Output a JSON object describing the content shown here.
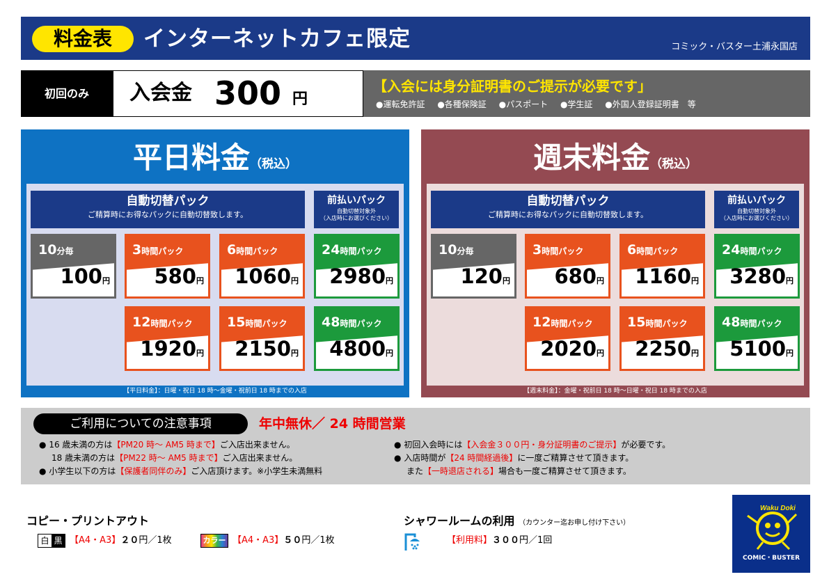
{
  "header": {
    "tag": "料金表",
    "title": "インターネットカフェ限定",
    "store": "コミック・バスター土浦永国店"
  },
  "entry": {
    "label": "初回のみ",
    "fee_label": "入会金",
    "fee_amount": "300",
    "fee_yen": "円",
    "id_title": "【入会には身分証明書のご提示が必要です」",
    "id_items": [
      "●運転免許証",
      "●各種保険証",
      "●パスポート",
      "●学生証",
      "●外国人登録証明書　等"
    ]
  },
  "weekday": {
    "title": "平日料金",
    "tax": "（税込）",
    "auto_title": "自動切替パック",
    "auto_desc": "ご精算時にお得なパックに自動切替致します。",
    "pre_title": "前払いパック",
    "pre_desc1": "自動切替対象外",
    "pre_desc2": "（入店時にお選びください）",
    "cards": [
      {
        "num": "10",
        "unit": "分毎",
        "price": "100",
        "yen": "円",
        "color": "gray"
      },
      {
        "num": "3",
        "unit": "時間パック",
        "price": "580",
        "yen": "円",
        "color": "orange"
      },
      {
        "num": "6",
        "unit": "時間パック",
        "price": "1060",
        "yen": "円",
        "color": "orange"
      },
      {
        "num": "24",
        "unit": "時間パック",
        "price": "2980",
        "yen": "円",
        "color": "green"
      },
      {
        "num": "12",
        "unit": "時間パック",
        "price": "1920",
        "yen": "円",
        "color": "orange"
      },
      {
        "num": "15",
        "unit": "時間パック",
        "price": "2150",
        "yen": "円",
        "color": "orange"
      },
      {
        "num": "48",
        "unit": "時間パック",
        "price": "4800",
        "yen": "円",
        "color": "green"
      }
    ],
    "footer": "【平日料金】：日曜・祝日 18 時～金曜・祝前日 18 時までの入店"
  },
  "weekend": {
    "title": "週末料金",
    "tax": "（税込）",
    "auto_title": "自動切替パック",
    "auto_desc": "ご精算時にお得なパックに自動切替致します。",
    "pre_title": "前払いパック",
    "pre_desc1": "自動切替対象外",
    "pre_desc2": "（入店時にお選びください）",
    "cards": [
      {
        "num": "10",
        "unit": "分毎",
        "price": "120",
        "yen": "円",
        "color": "gray"
      },
      {
        "num": "3",
        "unit": "時間パック",
        "price": "680",
        "yen": "円",
        "color": "orange"
      },
      {
        "num": "6",
        "unit": "時間パック",
        "price": "1160",
        "yen": "円",
        "color": "orange"
      },
      {
        "num": "24",
        "unit": "時間パック",
        "price": "3280",
        "yen": "円",
        "color": "green"
      },
      {
        "num": "12",
        "unit": "時間パック",
        "price": "2020",
        "yen": "円",
        "color": "orange"
      },
      {
        "num": "15",
        "unit": "時間パック",
        "price": "2250",
        "yen": "円",
        "color": "orange"
      },
      {
        "num": "48",
        "unit": "時間パック",
        "price": "5100",
        "yen": "円",
        "color": "green"
      }
    ],
    "footer": "【週末料金】：金曜・祝前日 18 時～日曜・祝日 18 時までの入店"
  },
  "notes": {
    "title": "ご利用についての注意事項",
    "open": "年中無休／ 24 時間営業",
    "left": [
      {
        "bullet": "●",
        "a": "16 歳未満の方は",
        "r": "【PM20 時～ AM5 時まで】",
        "b": "ご入店出来ません。"
      },
      {
        "bullet": "",
        "a": "18 歳未満の方は",
        "r": "【PM22 時～ AM5 時まで】",
        "b": "ご入店出来ません。"
      },
      {
        "bullet": "●",
        "a": "小学生以下の方は",
        "r": "【保護者同伴のみ】",
        "b": "ご入店頂けます。※小学生未満無料"
      }
    ],
    "right": [
      {
        "bullet": "●",
        "a": "初回入会時には",
        "r": "【入会金３００円・身分証明書のご提示】",
        "b": "が必要です。"
      },
      {
        "bullet": "●",
        "a": "入店時間が",
        "r": "【24 時間経過後】",
        "b": "に一度ご精算させて頂きます。"
      },
      {
        "bullet": "",
        "a": "また",
        "r": "【一時退店される】",
        "b": "場合も一度ご精算させて頂きます。"
      }
    ]
  },
  "copy": {
    "title": "コピー・プリントアウト",
    "bw_badge_w": "白",
    "bw_badge_k": "黒",
    "bw_size": "【A4・A3】",
    "bw_price": "２０",
    "bw_unit": "円／1枚",
    "color_badge": "カラー",
    "color_size": "【A4・A3】",
    "color_price": "５０",
    "color_unit": "円／1枚"
  },
  "shower": {
    "title": "シャワールームの利用",
    "note": "（カウンター迄お申し付け下さい）",
    "fee_label": "【利用料】",
    "fee": "３００",
    "unit": "円／1回"
  },
  "logo": {
    "brand": "COMIC・BUSTER",
    "mascot": "Waku Doki"
  }
}
